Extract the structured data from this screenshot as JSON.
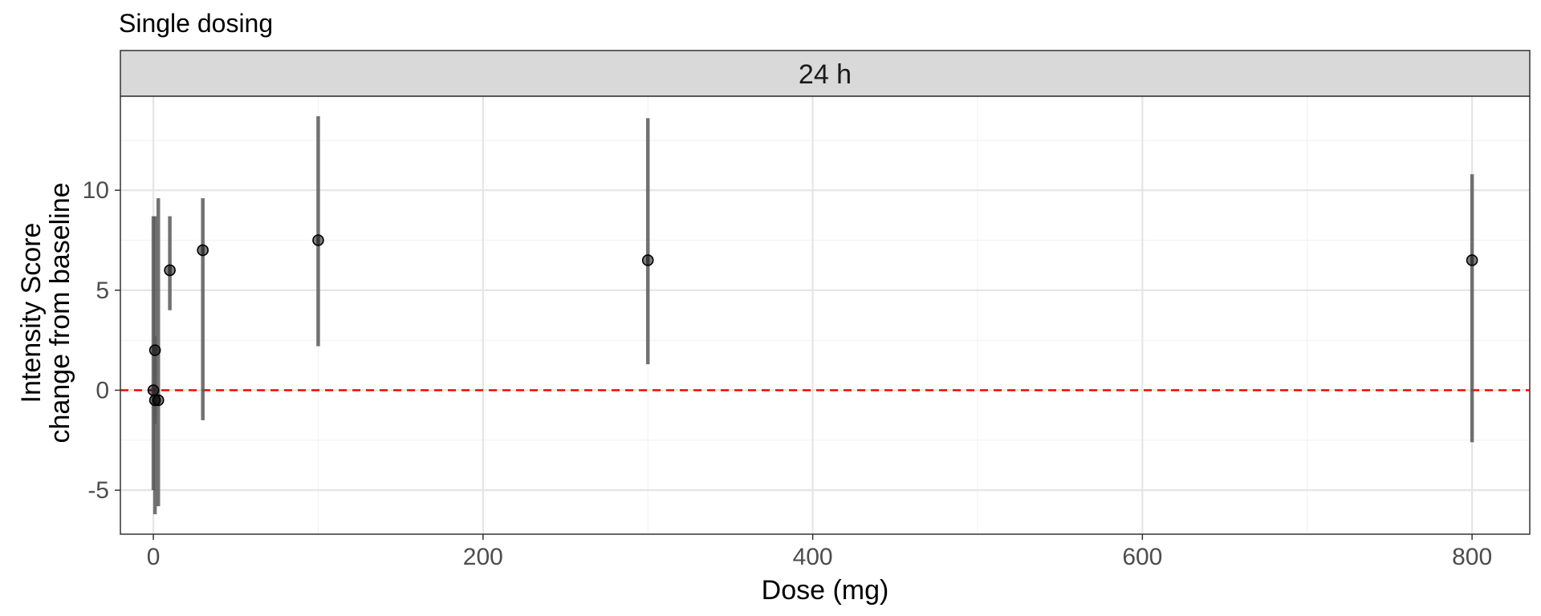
{
  "chart_data": {
    "type": "scatter",
    "title": "Single dosing",
    "facet_label": "24 h",
    "xlabel": "Dose (mg)",
    "ylabel_lines": [
      "Intensity Score",
      "change from baseline"
    ],
    "xlim": [
      -20,
      835
    ],
    "ylim": [
      -7.2,
      14.7
    ],
    "x_ticks": [
      0,
      200,
      400,
      600,
      800
    ],
    "x_minor": [
      100,
      300,
      500,
      700
    ],
    "y_ticks": [
      -5,
      0,
      5,
      10
    ],
    "y_minor": [
      -2.5,
      2.5,
      7.5,
      12.5
    ],
    "grid": true,
    "legend": "none",
    "reference_line": {
      "y": 0,
      "style": "dashed",
      "color": "#ff0000"
    },
    "points": [
      {
        "x": 0,
        "y": 0,
        "low": -5,
        "high": 8.7
      },
      {
        "x": 1,
        "y": 2,
        "low": -1.7,
        "high": 2.7
      },
      {
        "x": 1,
        "y": -0.5,
        "low": -6.2,
        "high": 8.7
      },
      {
        "x": 3,
        "y": -0.5,
        "low": -5.8,
        "high": 9.6
      },
      {
        "x": 10,
        "y": 6,
        "low": 4,
        "high": 8.7
      },
      {
        "x": 30,
        "y": 7,
        "low": -1.5,
        "high": 9.6
      },
      {
        "x": 100,
        "y": 7.5,
        "low": 2.2,
        "high": 13.7
      },
      {
        "x": 300,
        "y": 6.5,
        "low": 1.3,
        "high": 13.6
      },
      {
        "x": 800,
        "y": 6.5,
        "low": -2.6,
        "high": 10.8
      }
    ],
    "colors": {
      "point": "#000000",
      "errorbar": "#595959",
      "grid_major": "#e5e5e5",
      "grid_minor": "#f2f2f2",
      "strip_fill": "#d9d9d9"
    }
  }
}
